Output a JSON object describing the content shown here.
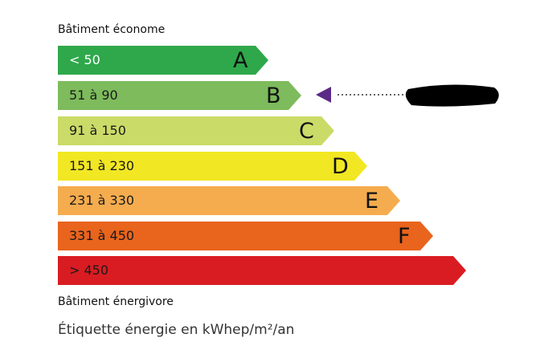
{
  "header": {
    "top_label": "Bâtiment économe",
    "bottom_label": "Bâtiment énergivore",
    "caption": "Étiquette énergie en kWhep/m²/an"
  },
  "classes": [
    {
      "letter": "A",
      "range": "< 50",
      "color": "#2ea84a",
      "text_color": "#ffffff"
    },
    {
      "letter": "B",
      "range": "51 à 90",
      "color": "#7dbb5c",
      "text_color": "#1a1a1a"
    },
    {
      "letter": "C",
      "range": "91 à 150",
      "color": "#cbdb68",
      "text_color": "#1a1a1a"
    },
    {
      "letter": "D",
      "range": "151 à 230",
      "color": "#f2e723",
      "text_color": "#1a1a1a"
    },
    {
      "letter": "E",
      "range": "231 à 330",
      "color": "#f5ac4e",
      "text_color": "#1a1a1a"
    },
    {
      "letter": "F",
      "range": "331 à 450",
      "color": "#e9641d",
      "text_color": "#1a1a1a"
    },
    {
      "letter": "",
      "range": "> 450",
      "color": "#d91c22",
      "text_color": "#1a1a1a"
    }
  ],
  "indicator": {
    "class": "B",
    "color": "#5b2a86",
    "value_redacted": true
  }
}
